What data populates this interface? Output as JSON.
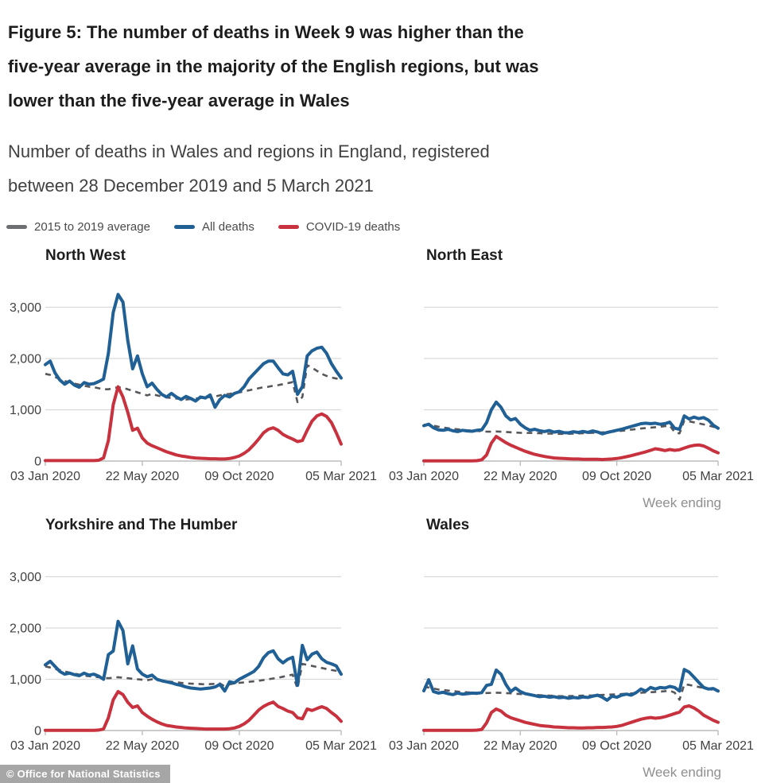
{
  "page": {
    "title_lines": [
      "Figure 5: The number of deaths in Week 9 was higher than the",
      "five-year average in the majority of the English regions, but was",
      "lower than the five-year average in Wales"
    ],
    "subtitle_lines": [
      "Number of deaths in Wales and regions in England, registered",
      "between 28 December 2019 and 5 March 2021"
    ],
    "footer": "© Office for National Statistics"
  },
  "legend": [
    {
      "label": "2015 to 2019 average",
      "color": "#6d6e71"
    },
    {
      "label": "All deaths",
      "color": "#206095"
    },
    {
      "label": "COVID-19 deaths",
      "color": "#c8323e"
    }
  ],
  "colors": {
    "gridline": "#d9d9d9",
    "axis": "#bcbcbc",
    "tick_text": "#414042",
    "week_ending_text": "#8f8f8f",
    "footer_bg": "#a6a6a6"
  },
  "chart_data": {
    "type": "line",
    "title": "Number of deaths in Wales and regions in England, registered between 28 December 2019 and 5 March 2021",
    "x_axis_title": "Week ending",
    "n_points": 62,
    "x_range_labels": [
      "03 Jan 2020",
      "05 Mar 2021"
    ],
    "x_ticks": [
      {
        "index": 0,
        "label": "03 Jan 2020"
      },
      {
        "index": 20,
        "label": "22 May 2020"
      },
      {
        "index": 40,
        "label": "09 Oct 2020"
      },
      {
        "index": 61,
        "label": "05 Mar 2021"
      }
    ],
    "y_ticks": [
      0,
      1000,
      2000,
      3000
    ],
    "y_tick_labels": [
      "0",
      "1,000",
      "2,000",
      "3,000"
    ],
    "ylim": [
      0,
      3300
    ],
    "grid": true,
    "legend_position": "top-left",
    "series_styles": {
      "average": {
        "color": "#57565b",
        "width": 2.6,
        "dash": "7 6"
      },
      "all": {
        "color": "#206095",
        "width": 4
      },
      "covid": {
        "color": "#c8323e",
        "width": 4
      }
    },
    "panels": [
      {
        "region": "North West",
        "y_axis_labels": true,
        "week_ending_label": false,
        "series": [
          {
            "name": "2015 to 2019 average",
            "style": "average",
            "values": [
              1700,
              1680,
              1640,
              1600,
              1560,
              1540,
              1510,
              1490,
              1470,
              1450,
              1440,
              1420,
              1400,
              1400,
              1420,
              1440,
              1430,
              1400,
              1370,
              1340,
              1310,
              1280,
              1310,
              1280,
              1260,
              1240,
              1230,
              1220,
              1210,
              1200,
              1210,
              1220,
              1230,
              1240,
              1250,
              1260,
              1280,
              1300,
              1310,
              1330,
              1340,
              1360,
              1380,
              1400,
              1420,
              1440,
              1450,
              1470,
              1480,
              1500,
              1520,
              1540,
              1150,
              1250,
              1870,
              1820,
              1760,
              1700,
              1660,
              1630,
              1610,
              1600
            ]
          },
          {
            "name": "All deaths",
            "style": "all",
            "values": [
              1880,
              1950,
              1720,
              1580,
              1500,
              1560,
              1480,
              1440,
              1530,
              1500,
              1510,
              1550,
              1600,
              2100,
              2900,
              3250,
              3100,
              2350,
              1800,
              2050,
              1700,
              1450,
              1520,
              1400,
              1300,
              1250,
              1320,
              1250,
              1200,
              1260,
              1220,
              1170,
              1250,
              1230,
              1290,
              1050,
              1200,
              1280,
              1250,
              1320,
              1350,
              1450,
              1600,
              1700,
              1800,
              1900,
              1950,
              1950,
              1820,
              1700,
              1680,
              1750,
              1300,
              1450,
              2050,
              2150,
              2200,
              2220,
              2100,
              1900,
              1750,
              1620
            ]
          },
          {
            "name": "COVID-19 deaths",
            "style": "covid",
            "values": [
              10,
              10,
              10,
              10,
              10,
              10,
              10,
              10,
              10,
              10,
              10,
              15,
              60,
              400,
              1100,
              1450,
              1250,
              950,
              600,
              640,
              450,
              350,
              300,
              260,
              220,
              180,
              150,
              120,
              100,
              85,
              70,
              60,
              55,
              50,
              45,
              45,
              40,
              40,
              50,
              70,
              100,
              150,
              220,
              320,
              430,
              550,
              620,
              650,
              600,
              520,
              470,
              430,
              380,
              400,
              600,
              780,
              880,
              920,
              870,
              750,
              550,
              330
            ]
          }
        ]
      },
      {
        "region": "North East",
        "y_axis_labels": false,
        "week_ending_label": true,
        "series": [
          {
            "name": "2015 to 2019 average",
            "style": "average",
            "values": [
              710,
              700,
              690,
              670,
              655,
              640,
              630,
              620,
              610,
              600,
              595,
              588,
              580,
              574,
              572,
              576,
              572,
              568,
              562,
              556,
              550,
              546,
              550,
              546,
              542,
              538,
              535,
              533,
              530,
              530,
              532,
              535,
              538,
              542,
              546,
              550,
              555,
              560,
              565,
              572,
              580,
              590,
              600,
              612,
              622,
              634,
              644,
              652,
              660,
              670,
              680,
              695,
              560,
              540,
              790,
              775,
              755,
              735,
              715,
              695,
              668,
              645
            ]
          },
          {
            "name": "All deaths",
            "style": "all",
            "values": [
              690,
              720,
              650,
              610,
              600,
              620,
              590,
              575,
              600,
              588,
              582,
              600,
              610,
              750,
              1000,
              1150,
              1050,
              880,
              800,
              830,
              720,
              650,
              600,
              620,
              590,
              575,
              595,
              565,
              580,
              555,
              550,
              572,
              558,
              578,
              560,
              588,
              568,
              530,
              558,
              578,
              600,
              620,
              648,
              675,
              700,
              728,
              738,
              728,
              738,
              718,
              730,
              758,
              640,
              620,
              880,
              820,
              858,
              828,
              848,
              798,
              700,
              640
            ]
          },
          {
            "name": "COVID-19 deaths",
            "style": "covid",
            "values": [
              5,
              5,
              5,
              5,
              5,
              5,
              5,
              5,
              5,
              5,
              5,
              8,
              25,
              120,
              350,
              480,
              420,
              360,
              310,
              270,
              230,
              190,
              160,
              130,
              110,
              90,
              75,
              60,
              55,
              50,
              45,
              40,
              40,
              35,
              35,
              35,
              35,
              30,
              35,
              40,
              50,
              65,
              85,
              105,
              130,
              155,
              180,
              210,
              240,
              225,
              205,
              225,
              210,
              220,
              255,
              285,
              305,
              315,
              295,
              250,
              200,
              160
            ]
          }
        ]
      },
      {
        "region": "Yorkshire and The Humber",
        "y_axis_labels": true,
        "week_ending_label": false,
        "series": [
          {
            "name": "2015 to 2019 average",
            "style": "average",
            "values": [
              1250,
              1230,
              1200,
              1180,
              1150,
              1130,
              1110,
              1090,
              1070,
              1060,
              1050,
              1040,
              1030,
              1020,
              1030,
              1040,
              1030,
              1020,
              1010,
              1000,
              990,
              980,
              1000,
              980,
              970,
              960,
              950,
              940,
              930,
              920,
              915,
              910,
              905,
              900,
              905,
              910,
              920,
              860,
              900,
              920,
              930,
              940,
              950,
              960,
              970,
              985,
              1000,
              1015,
              1030,
              1050,
              1070,
              1090,
              820,
              1300,
              1280,
              1260,
              1240,
              1220,
              1200,
              1180,
              1165,
              1150
            ]
          },
          {
            "name": "All deaths",
            "style": "all",
            "values": [
              1280,
              1350,
              1250,
              1150,
              1100,
              1120,
              1090,
              1070,
              1120,
              1080,
              1100,
              1060,
              1000,
              1480,
              1550,
              2130,
              1950,
              1300,
              1650,
              1200,
              1100,
              1050,
              1080,
              1000,
              970,
              950,
              930,
              900,
              880,
              850,
              830,
              820,
              810,
              820,
              830,
              850,
              900,
              770,
              950,
              930,
              1000,
              1050,
              1100,
              1150,
              1250,
              1420,
              1520,
              1555,
              1400,
              1320,
              1390,
              1430,
              880,
              1660,
              1380,
              1490,
              1530,
              1400,
              1330,
              1300,
              1260,
              1100
            ]
          },
          {
            "name": "COVID-19 deaths",
            "style": "covid",
            "values": [
              5,
              5,
              5,
              5,
              5,
              5,
              5,
              5,
              5,
              5,
              5,
              10,
              30,
              250,
              600,
              760,
              700,
              550,
              450,
              480,
              350,
              280,
              220,
              170,
              130,
              100,
              85,
              70,
              60,
              50,
              45,
              40,
              35,
              30,
              30,
              30,
              30,
              30,
              35,
              50,
              80,
              130,
              200,
              300,
              400,
              470,
              520,
              555,
              470,
              430,
              380,
              350,
              250,
              230,
              420,
              390,
              430,
              465,
              430,
              350,
              280,
              180
            ]
          }
        ]
      },
      {
        "region": "Wales",
        "y_axis_labels": false,
        "week_ending_label": true,
        "series": [
          {
            "name": "2015 to 2019 average",
            "style": "average",
            "values": [
              850,
              840,
              820,
              800,
              790,
              780,
              770,
              760,
              750,
              745,
              740,
              738,
              735,
              732,
              735,
              738,
              735,
              730,
              725,
              718,
              712,
              705,
              700,
              695,
              690,
              685,
              680,
              676,
              672,
              670,
              672,
              675,
              678,
              680,
              683,
              686,
              690,
              694,
              698,
              702,
              706,
              712,
              718,
              724,
              730,
              736,
              742,
              748,
              754,
              760,
              768,
              776,
              740,
              600,
              900,
              890,
              870,
              850,
              830,
              810,
              795,
              780
            ]
          },
          {
            "name": "All deaths",
            "style": "all",
            "values": [
              775,
              990,
              760,
              730,
              745,
              720,
              700,
              730,
              710,
              720,
              730,
              725,
              740,
              880,
              900,
              1180,
              1100,
              900,
              760,
              830,
              760,
              720,
              700,
              680,
              660,
              670,
              650,
              660,
              640,
              650,
              630,
              645,
              635,
              655,
              645,
              670,
              690,
              650,
              590,
              670,
              650,
              690,
              710,
              690,
              740,
              810,
              770,
              840,
              810,
              840,
              830,
              860,
              840,
              770,
              1190,
              1140,
              1040,
              940,
              840,
              810,
              820,
              770
            ]
          },
          {
            "name": "COVID-19 deaths",
            "style": "covid",
            "values": [
              3,
              3,
              3,
              3,
              3,
              3,
              3,
              3,
              3,
              3,
              3,
              8,
              20,
              150,
              350,
              420,
              380,
              300,
              250,
              220,
              190,
              160,
              140,
              120,
              100,
              90,
              80,
              70,
              65,
              60,
              55,
              55,
              50,
              50,
              55,
              55,
              60,
              60,
              65,
              70,
              80,
              100,
              130,
              160,
              190,
              220,
              240,
              255,
              240,
              250,
              270,
              300,
              330,
              360,
              460,
              480,
              440,
              380,
              300,
              250,
              200,
              160
            ]
          }
        ]
      }
    ]
  }
}
